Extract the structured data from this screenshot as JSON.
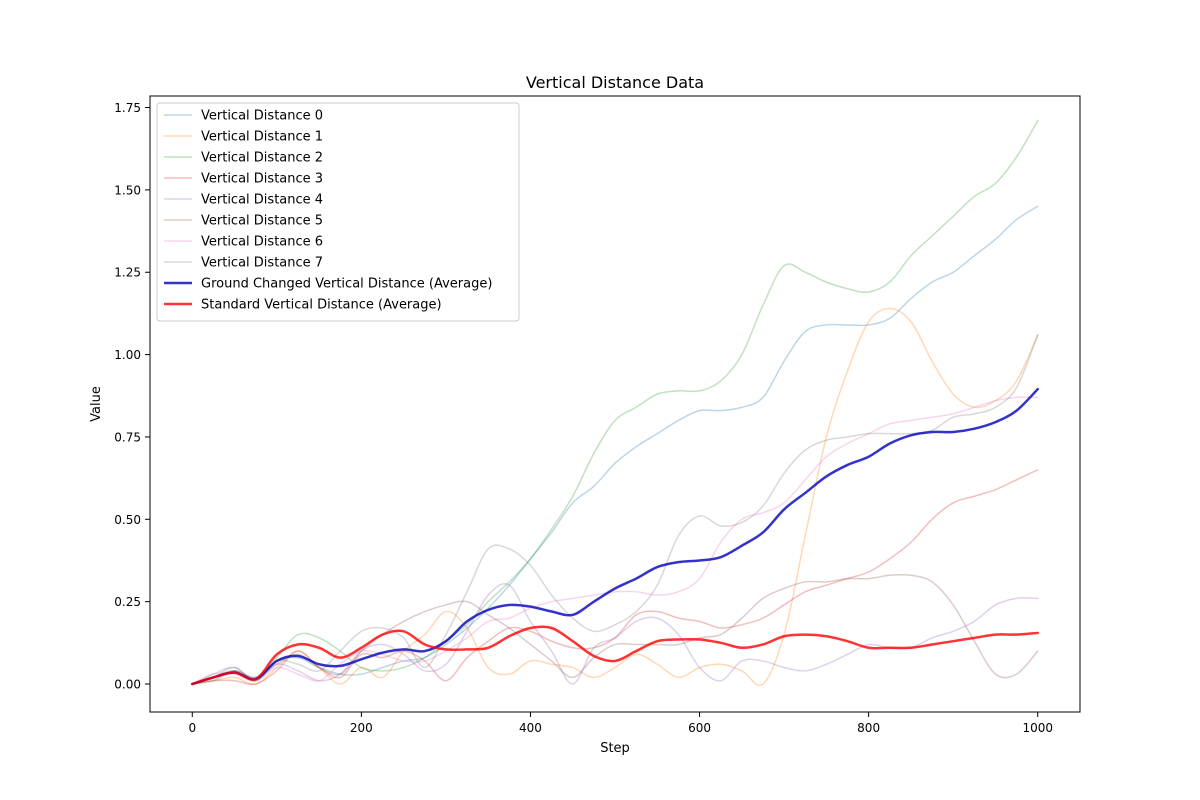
{
  "chart_data": {
    "type": "line",
    "title": "Vertical Distance Data",
    "xlabel": "Step",
    "ylabel": "Value",
    "xlim": [
      -50,
      1050
    ],
    "ylim": [
      -0.085,
      1.785
    ],
    "xticks": [
      0,
      200,
      400,
      600,
      800,
      1000
    ],
    "yticks": [
      0.0,
      0.25,
      0.5,
      0.75,
      1.0,
      1.25,
      1.5,
      1.75
    ],
    "xtick_labels": [
      "0",
      "200",
      "400",
      "600",
      "800",
      "1000"
    ],
    "ytick_labels": [
      "0.00",
      "0.25",
      "0.50",
      "0.75",
      "1.00",
      "1.25",
      "1.50",
      "1.75"
    ],
    "grid": false,
    "legend_position": "top-left",
    "x": [
      0,
      25,
      50,
      75,
      100,
      125,
      150,
      175,
      200,
      225,
      250,
      275,
      300,
      325,
      350,
      375,
      400,
      425,
      450,
      475,
      500,
      525,
      550,
      575,
      600,
      625,
      650,
      675,
      700,
      725,
      750,
      775,
      800,
      825,
      850,
      875,
      900,
      925,
      950,
      975,
      1000
    ],
    "series": [
      {
        "name": "Vertical Distance 0",
        "color": "#1f77b4",
        "opacity": 0.3,
        "width": 1.5,
        "values": [
          0.0,
          0.01,
          0.04,
          0.02,
          0.07,
          0.08,
          0.05,
          0.03,
          0.03,
          0.05,
          0.07,
          0.08,
          0.12,
          0.17,
          0.23,
          0.3,
          0.38,
          0.46,
          0.55,
          0.6,
          0.67,
          0.72,
          0.76,
          0.8,
          0.83,
          0.83,
          0.84,
          0.87,
          0.98,
          1.07,
          1.09,
          1.09,
          1.09,
          1.11,
          1.17,
          1.22,
          1.25,
          1.3,
          1.35,
          1.41,
          1.45
        ]
      },
      {
        "name": "Vertical Distance 1",
        "color": "#ff7f0e",
        "opacity": 0.3,
        "width": 1.5,
        "values": [
          0.0,
          0.01,
          0.02,
          0.0,
          0.05,
          0.1,
          0.05,
          0.0,
          0.05,
          0.02,
          0.1,
          0.15,
          0.22,
          0.17,
          0.05,
          0.03,
          0.07,
          0.06,
          0.05,
          0.02,
          0.05,
          0.09,
          0.06,
          0.02,
          0.05,
          0.06,
          0.04,
          0.0,
          0.15,
          0.45,
          0.75,
          0.95,
          1.1,
          1.14,
          1.1,
          0.98,
          0.88,
          0.84,
          0.86,
          0.92,
          1.06
        ]
      },
      {
        "name": "Vertical Distance 2",
        "color": "#2ca02c",
        "opacity": 0.3,
        "width": 1.5,
        "values": [
          0.0,
          0.02,
          0.04,
          0.01,
          0.08,
          0.15,
          0.14,
          0.1,
          0.05,
          0.04,
          0.05,
          0.08,
          0.13,
          0.18,
          0.25,
          0.31,
          0.38,
          0.47,
          0.57,
          0.7,
          0.8,
          0.84,
          0.88,
          0.89,
          0.89,
          0.92,
          1.0,
          1.15,
          1.27,
          1.25,
          1.22,
          1.2,
          1.19,
          1.22,
          1.3,
          1.36,
          1.42,
          1.48,
          1.52,
          1.6,
          1.71
        ]
      },
      {
        "name": "Vertical Distance 3",
        "color": "#d62728",
        "opacity": 0.3,
        "width": 1.5,
        "values": [
          0.0,
          0.01,
          0.01,
          0.0,
          0.04,
          0.1,
          0.05,
          0.02,
          0.09,
          0.08,
          0.1,
          0.07,
          0.01,
          0.08,
          0.13,
          0.17,
          0.16,
          0.13,
          0.11,
          0.11,
          0.14,
          0.21,
          0.22,
          0.2,
          0.19,
          0.17,
          0.18,
          0.2,
          0.24,
          0.28,
          0.3,
          0.32,
          0.34,
          0.38,
          0.43,
          0.5,
          0.55,
          0.57,
          0.59,
          0.62,
          0.65
        ]
      },
      {
        "name": "Vertical Distance 4",
        "color": "#9467bd",
        "opacity": 0.3,
        "width": 1.5,
        "values": [
          0.0,
          0.03,
          0.05,
          0.01,
          0.06,
          0.04,
          0.01,
          0.03,
          0.1,
          0.12,
          0.09,
          0.04,
          0.06,
          0.16,
          0.27,
          0.3,
          0.19,
          0.1,
          0.0,
          0.11,
          0.14,
          0.19,
          0.2,
          0.15,
          0.05,
          0.01,
          0.07,
          0.07,
          0.05,
          0.04,
          0.06,
          0.09,
          0.12,
          0.11,
          0.11,
          0.14,
          0.16,
          0.19,
          0.24,
          0.26,
          0.26
        ]
      },
      {
        "name": "Vertical Distance 5",
        "color": "#8c564b",
        "opacity": 0.3,
        "width": 1.5,
        "values": [
          0.0,
          0.02,
          0.04,
          0.02,
          0.06,
          0.09,
          0.05,
          0.03,
          0.1,
          0.15,
          0.19,
          0.22,
          0.24,
          0.25,
          0.21,
          0.17,
          0.12,
          0.07,
          0.02,
          0.08,
          0.12,
          0.12,
          0.12,
          0.12,
          0.14,
          0.15,
          0.2,
          0.26,
          0.29,
          0.31,
          0.31,
          0.32,
          0.32,
          0.33,
          0.33,
          0.31,
          0.24,
          0.13,
          0.03,
          0.03,
          0.1
        ]
      },
      {
        "name": "Vertical Distance 6",
        "color": "#e377c2",
        "opacity": 0.3,
        "width": 1.5,
        "values": [
          0.0,
          0.03,
          0.03,
          0.01,
          0.05,
          0.03,
          0.01,
          0.06,
          0.1,
          0.09,
          0.07,
          0.07,
          0.1,
          0.14,
          0.19,
          0.2,
          0.23,
          0.25,
          0.26,
          0.27,
          0.28,
          0.28,
          0.27,
          0.28,
          0.32,
          0.43,
          0.5,
          0.52,
          0.55,
          0.62,
          0.69,
          0.73,
          0.76,
          0.79,
          0.8,
          0.81,
          0.82,
          0.84,
          0.86,
          0.87,
          0.87
        ]
      },
      {
        "name": "Vertical Distance 7",
        "color": "#7f7f7f",
        "opacity": 0.3,
        "width": 1.5,
        "values": [
          0.0,
          0.02,
          0.05,
          0.01,
          0.07,
          0.06,
          0.04,
          0.1,
          0.16,
          0.17,
          0.14,
          0.05,
          0.15,
          0.28,
          0.41,
          0.41,
          0.36,
          0.27,
          0.2,
          0.16,
          0.18,
          0.22,
          0.3,
          0.45,
          0.51,
          0.48,
          0.49,
          0.54,
          0.64,
          0.71,
          0.74,
          0.75,
          0.76,
          0.76,
          0.76,
          0.77,
          0.81,
          0.82,
          0.84,
          0.9,
          1.06
        ]
      },
      {
        "name": "Ground Changed Vertical Distance (Average)",
        "color": "#0000bf",
        "opacity": 0.8,
        "width": 2.5,
        "values": [
          0.0,
          0.02,
          0.035,
          0.015,
          0.07,
          0.085,
          0.06,
          0.055,
          0.075,
          0.095,
          0.105,
          0.1,
          0.13,
          0.19,
          0.225,
          0.24,
          0.235,
          0.22,
          0.21,
          0.25,
          0.29,
          0.32,
          0.355,
          0.37,
          0.375,
          0.385,
          0.42,
          0.46,
          0.53,
          0.58,
          0.63,
          0.665,
          0.69,
          0.73,
          0.755,
          0.765,
          0.765,
          0.775,
          0.795,
          0.83,
          0.895
        ]
      },
      {
        "name": "Standard Vertical Distance (Average)",
        "color": "#ff0000",
        "opacity": 0.8,
        "width": 2.5,
        "values": [
          0.0,
          0.02,
          0.035,
          0.015,
          0.09,
          0.12,
          0.11,
          0.08,
          0.11,
          0.15,
          0.16,
          0.12,
          0.105,
          0.105,
          0.11,
          0.145,
          0.17,
          0.17,
          0.13,
          0.085,
          0.07,
          0.1,
          0.13,
          0.135,
          0.135,
          0.125,
          0.11,
          0.12,
          0.145,
          0.15,
          0.145,
          0.13,
          0.11,
          0.11,
          0.11,
          0.12,
          0.13,
          0.14,
          0.15,
          0.15,
          0.155
        ]
      }
    ]
  }
}
